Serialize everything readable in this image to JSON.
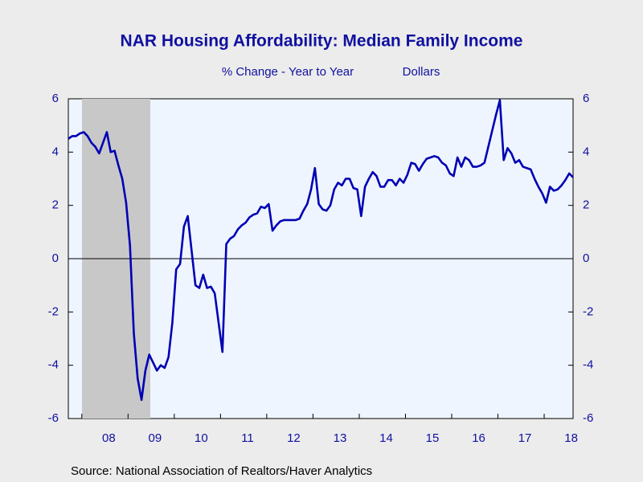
{
  "chart_data": {
    "type": "line",
    "title": "NAR Housing Affordability: Median Family Income",
    "subtitle": "% Change - Year to Year",
    "subtitle2": "Dollars",
    "source": "Source:  National Association of Realtors/Haver Analytics",
    "categories": [
      null,
      null,
      null,
      null,
      null,
      null,
      null,
      null,
      null,
      null,
      "08",
      null,
      null,
      null,
      null,
      null,
      null,
      null,
      null,
      null,
      null,
      null,
      "09",
      null,
      null,
      null,
      null,
      null,
      null,
      null,
      null,
      null,
      null,
      null,
      "10",
      null,
      null,
      null,
      null,
      null,
      null,
      null,
      null,
      null,
      null,
      null,
      "11",
      null,
      null,
      null,
      null,
      null,
      null,
      null,
      null,
      null,
      null,
      null,
      "12",
      null,
      null,
      null,
      null,
      null,
      null,
      null,
      null,
      null,
      null,
      null,
      "13",
      null,
      null,
      null,
      null,
      null,
      null,
      null,
      null,
      null,
      null,
      null,
      "14",
      null,
      null,
      null,
      null,
      null,
      null,
      null,
      null,
      null,
      null,
      null,
      "15",
      null,
      null,
      null,
      null,
      null,
      null,
      null,
      null,
      null,
      null,
      null,
      "16",
      null,
      null,
      null,
      null,
      null,
      null,
      null,
      null,
      null,
      null,
      null,
      "17",
      null,
      null,
      null,
      null,
      null,
      null,
      null,
      null,
      null,
      null,
      null,
      "18",
      null
    ],
    "values": [
      4.5,
      4.6,
      4.6,
      4.7,
      4.75,
      4.6,
      4.35,
      4.2,
      3.95,
      4.35,
      4.75,
      4.0,
      4.05,
      3.5,
      3.0,
      2.1,
      0.5,
      -2.8,
      -4.5,
      -5.3,
      -4.2,
      -3.6,
      -3.9,
      -4.2,
      -4.0,
      -4.1,
      -3.7,
      -2.4,
      -0.4,
      -0.2,
      1.2,
      1.6,
      0.3,
      -1.0,
      -1.1,
      -0.6,
      -1.1,
      -1.05,
      -1.3,
      -2.4,
      -3.5,
      0.55,
      0.75,
      0.85,
      1.1,
      1.25,
      1.35,
      1.55,
      1.65,
      1.7,
      1.95,
      1.9,
      2.05,
      1.05,
      1.25,
      1.4,
      1.45,
      1.45,
      1.45,
      1.45,
      1.5,
      1.8,
      2.05,
      2.6,
      3.4,
      2.05,
      1.85,
      1.8,
      2.0,
      2.6,
      2.85,
      2.75,
      3.0,
      3.0,
      2.65,
      2.6,
      1.6,
      2.7,
      3.0,
      3.25,
      3.1,
      2.7,
      2.7,
      2.95,
      2.95,
      2.75,
      3.0,
      2.85,
      3.15,
      3.6,
      3.55,
      3.3,
      3.55,
      3.75,
      3.8,
      3.85,
      3.8,
      3.6,
      3.5,
      3.2,
      3.1,
      3.8,
      3.45,
      3.8,
      3.7,
      3.45,
      3.45,
      3.5,
      3.6,
      4.2,
      4.8,
      5.4,
      5.95,
      3.7,
      4.15,
      3.95,
      3.6,
      3.7,
      3.45,
      3.4,
      3.35,
      3.0,
      2.7,
      2.45,
      2.1,
      2.7,
      2.55,
      2.6,
      2.75,
      2.95,
      3.2,
      3.05
    ],
    "color": "#0000b4",
    "ylim": [
      -6,
      6
    ],
    "yticks": [
      -6,
      -4,
      -2,
      0,
      2,
      4,
      6
    ],
    "y2lim": [
      -6,
      6
    ],
    "y2ticks": [
      -6,
      -4,
      -2,
      0,
      2,
      4,
      6
    ]
  }
}
